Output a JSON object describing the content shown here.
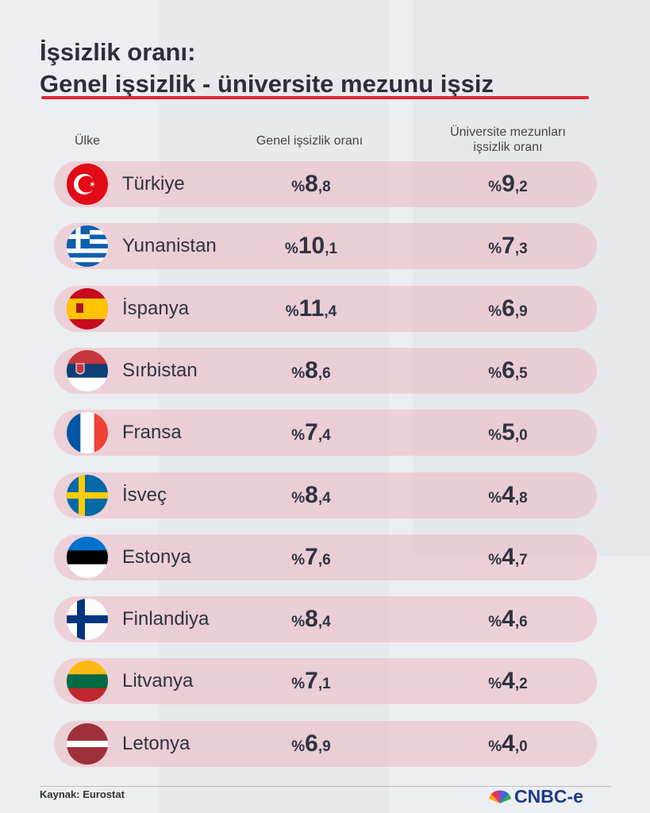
{
  "header": {
    "title": "İşsizlik oranı:",
    "subtitle": "Genel işsizlik - üniversite mezunu işsiz"
  },
  "table": {
    "columns": {
      "country": "Ülke",
      "general": "Genel işsizlik oranı",
      "graduate": [
        "Üniversite mezunları",
        "işsizlik oranı"
      ]
    },
    "rows": [
      [
        "Türkiye",
        "%8,8",
        "%9,2"
      ],
      [
        "Yunanistan",
        "%10,1",
        "%7,3"
      ],
      [
        "İspanya",
        "%11,4",
        "%6,9"
      ],
      [
        "Sırbistan",
        "%8,6",
        "%6,5"
      ],
      [
        "Fransa",
        "%7,4",
        "%5,0"
      ],
      [
        "İsveç",
        "%8,4",
        "%4,8"
      ],
      [
        "Estonya",
        "%7,6",
        "%4,7"
      ],
      [
        "Finlandiya",
        "%8,4",
        "%4,6"
      ],
      [
        "Litvanya",
        "%7,1",
        "%4,2"
      ],
      [
        "Letonya",
        "%6,9",
        "%4,0"
      ]
    ]
  },
  "footer": {
    "source": "Kaynak: Eurostat",
    "logo": "CNBC-e"
  }
}
